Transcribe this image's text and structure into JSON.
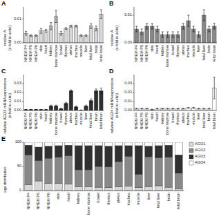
{
  "chart_data": [
    {
      "type": "bar",
      "title": "A",
      "y_label": "relative A\n(x fold to actin)",
      "categories": [
        "NHEM P4",
        "NHEM P5",
        "NHEM P6",
        "skin",
        "heart",
        "kidney",
        "bone marrow",
        "bowel",
        "thymus",
        "uterus",
        "trachea",
        "muscle",
        "liver",
        "fetal liver",
        "brain",
        "fetal brain"
      ],
      "values": [
        0.004,
        0.003,
        0.003,
        0.005,
        0.005,
        0.007,
        0.011,
        0.004,
        0.006,
        0.007,
        0.007,
        0.003,
        0.003,
        0.007,
        0.006,
        0.012
      ],
      "errors": [
        0.0008,
        0.0004,
        0.0004,
        0.001,
        0.0006,
        0.0015,
        0.0025,
        0.0008,
        0.0004,
        0.0004,
        0.0004,
        0.0004,
        0.0004,
        0.001,
        0.001,
        0.0018
      ],
      "color": "#d8d8d8",
      "ylim": [
        0,
        0.015
      ],
      "yticks": [
        {
          "value": 0,
          "label": "0.00"
        },
        0.01
      ],
      "grid": false
    },
    {
      "type": "bar",
      "title": "B",
      "y_label": "relative A\n(x fold to actin)",
      "categories": [
        "NHEM P4",
        "NHEM P5",
        "NHEM P6",
        "skin",
        "heart",
        "kidney",
        "bone marrow",
        "bowel",
        "thymus",
        "uterus",
        "trachea",
        "muscle",
        "liver",
        "fetal liver",
        "brain",
        "fetal brain"
      ],
      "values": [
        0.005,
        0.004,
        0.006,
        0.006,
        0.005,
        0.003,
        0.003,
        0.003,
        0.003,
        0.006,
        0.008,
        0.005,
        0.003,
        0.01,
        0.005,
        0.006
      ],
      "errors": [
        0.001,
        0.001,
        0.001,
        0.001,
        0.001,
        0.001,
        0.001,
        0.001,
        0.001,
        0.001,
        0.002,
        0.001,
        0.001,
        0.002,
        0.001,
        0.001
      ],
      "color": "#888888",
      "ylim": [
        0,
        0.013
      ],
      "yticks": [
        {
          "value": 0,
          "label": "0.00"
        },
        0.01
      ],
      "grid": false
    },
    {
      "type": "bar",
      "title": "C",
      "y_label": "relative AGO3 mRNA expression\n(x fold to actin)",
      "categories": [
        "NHEM P4",
        "NHEM P5",
        "NHEM P6",
        "skin",
        "heart",
        "kidney",
        "bone marrow",
        "bowel",
        "thymus",
        "uterus",
        "trachea",
        "muscle",
        "liver",
        "fetal liver",
        "brain",
        "fetal brain"
      ],
      "values": [
        0.001,
        0.001,
        0.001,
        0.001,
        0.001,
        0.005,
        0.005,
        0.002,
        0.008,
        0.022,
        0.004,
        0.0005,
        0.005,
        0.011,
        0.022,
        0.022
      ],
      "errors": [
        0.0002,
        0.0002,
        0.0002,
        0.0002,
        0.0002,
        0.001,
        0.001,
        0.0005,
        0.001,
        0.001,
        0.001,
        0.0002,
        0.001,
        0.002,
        0.002,
        0.003
      ],
      "color": "#303030",
      "ylim": [
        0,
        0.04
      ],
      "yticks": [
        {
          "value": 0,
          "label": "0.00"
        },
        0.01,
        0.02,
        0.03
      ],
      "grid": false
    },
    {
      "type": "bar",
      "title": "D",
      "y_label": "relative AGO4 mRNA expression\n(x fold to actin)",
      "categories": [
        "NHEM P4",
        "NHEM P5",
        "NHEM P6",
        "skin",
        "heart",
        "kidney",
        "bone marrow",
        "bowel",
        "thymus",
        "uterus",
        "trachea",
        "muscle",
        "liver",
        "fetal liver",
        "brain",
        "fetal brain"
      ],
      "values": [
        0.002,
        0.002,
        0.002,
        0.001,
        0.002,
        0.002,
        0.002,
        0.002,
        0.002,
        0.002,
        0.003,
        0.003,
        0.002,
        0.002,
        0.002,
        0.025
      ],
      "errors": [
        0.0005,
        0.0005,
        0.0005,
        0.0005,
        0.0005,
        0.0005,
        0.0005,
        0.0005,
        0.0005,
        0.0005,
        0.0005,
        0.0005,
        0.0005,
        0.0005,
        0.0005,
        0.012
      ],
      "color": "#ffffff",
      "ylim": [
        0,
        0.04
      ],
      "yticks": [
        {
          "value": 0,
          "label": "0.00"
        },
        0.01,
        0.02,
        0.03
      ],
      "grid": false
    },
    {
      "type": "bar",
      "stacked": true,
      "title": "E",
      "y_label": "age distribution",
      "categories": [
        "NHEM P4",
        "NHEM P5",
        "NHEM P6",
        "skin",
        "heart",
        "kidney",
        "bone marrow",
        "bowel",
        "thymus",
        "uterus",
        "trachea",
        "muscle",
        "liver",
        "fetal liver",
        "brain",
        "fetal brain"
      ],
      "series": [
        {
          "name": "AGO1",
          "color": "#d8d8d8",
          "values": [
            12,
            20,
            15,
            15,
            14,
            8,
            8,
            7,
            6,
            8,
            9,
            6,
            8,
            10,
            7,
            4
          ]
        },
        {
          "name": "AGO2",
          "color": "#888888",
          "values": [
            62,
            42,
            52,
            54,
            58,
            35,
            35,
            43,
            43,
            52,
            62,
            28,
            62,
            58,
            62,
            32
          ]
        },
        {
          "name": "AGO3",
          "color": "#303030",
          "values": [
            20,
            28,
            25,
            24,
            22,
            50,
            50,
            43,
            43,
            33,
            22,
            59,
            22,
            25,
            25,
            38
          ]
        },
        {
          "name": "AGO4",
          "color": "#ffffff",
          "values": [
            6,
            10,
            8,
            7,
            6,
            7,
            7,
            7,
            8,
            7,
            7,
            7,
            8,
            7,
            6,
            26
          ]
        }
      ],
      "ylim": [
        0,
        100
      ],
      "yticks": [
        0,
        50,
        100
      ],
      "legend": "upper right",
      "grid": false
    }
  ]
}
